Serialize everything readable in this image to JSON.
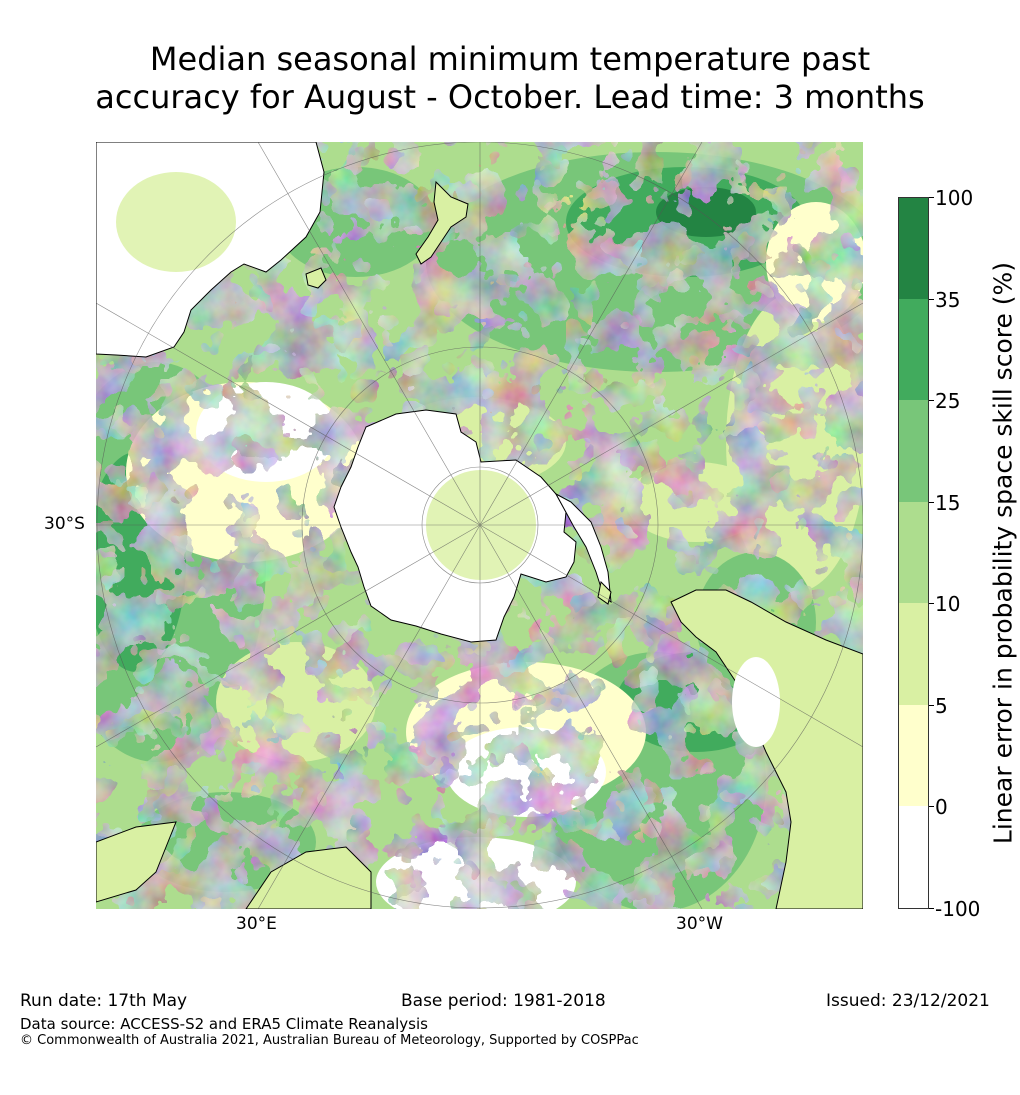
{
  "title": {
    "line1": "Median seasonal minimum temperature past",
    "line2": "accuracy for August - October. Lead time: 3 months"
  },
  "map": {
    "projection": "south-polar-stereographic",
    "lat_labels": [
      {
        "text": "30°S"
      }
    ],
    "lon_labels": [
      {
        "text": "30°E"
      },
      {
        "text": "30°W"
      }
    ]
  },
  "colorbar": {
    "label": "Linear error in probability space skill score (%)",
    "ticks": [
      "100",
      "35",
      "25",
      "15",
      "10",
      "5",
      "0",
      "-100"
    ],
    "levels": [
      {
        "range": "35 to 100",
        "color": "#238443"
      },
      {
        "range": "25 to 35",
        "color": "#41ab5d"
      },
      {
        "range": "15 to 25",
        "color": "#78c679"
      },
      {
        "range": "10 to 15",
        "color": "#addd8e"
      },
      {
        "range": "5 to 10",
        "color": "#d9f0a3"
      },
      {
        "range": "0 to 5",
        "color": "#ffffcc"
      },
      {
        "range": "-100 to 0",
        "color": "#ffffff"
      }
    ]
  },
  "footer": {
    "run_date": "Run date: 17th May",
    "base_period": "Base period: 1981-2018",
    "issued": "Issued: 23/12/2021",
    "data_source": "Data source: ACCESS-S2 and ERA5 Climate Reanalysis",
    "copyright": "© Commonwealth of Australia 2021, Australian Bureau of Meteorology, Supported by COSPPac"
  }
}
